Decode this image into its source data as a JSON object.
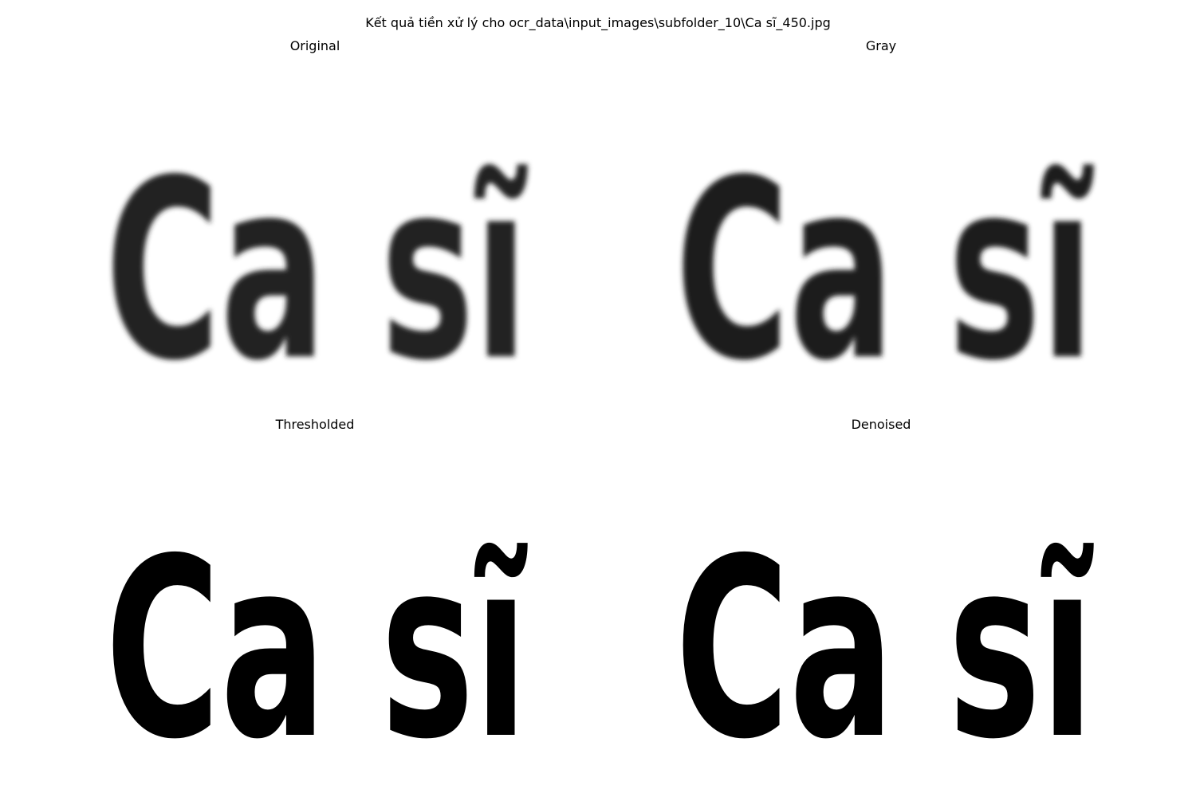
{
  "figure": {
    "title": "Kết quả tiền xử lý cho ocr_data\\input_images\\subfolder_10\\Ca sĩ_450.jpg"
  },
  "image_word": "Ca sĩ",
  "panels": [
    {
      "id": "original",
      "title": "Original",
      "style": "blurry-dark",
      "ink": "#222222",
      "bg": "#ffffff"
    },
    {
      "id": "gray",
      "title": "Gray",
      "style": "blurry-dark",
      "ink": "#1c1c1c",
      "bg": "#ffffff"
    },
    {
      "id": "thresholded",
      "title": "Thresholded",
      "style": "binary",
      "ink": "#000000",
      "bg": "#ffffff"
    },
    {
      "id": "denoised",
      "title": "Denoised",
      "style": "binary",
      "ink": "#000000",
      "bg": "#ffffff"
    }
  ]
}
